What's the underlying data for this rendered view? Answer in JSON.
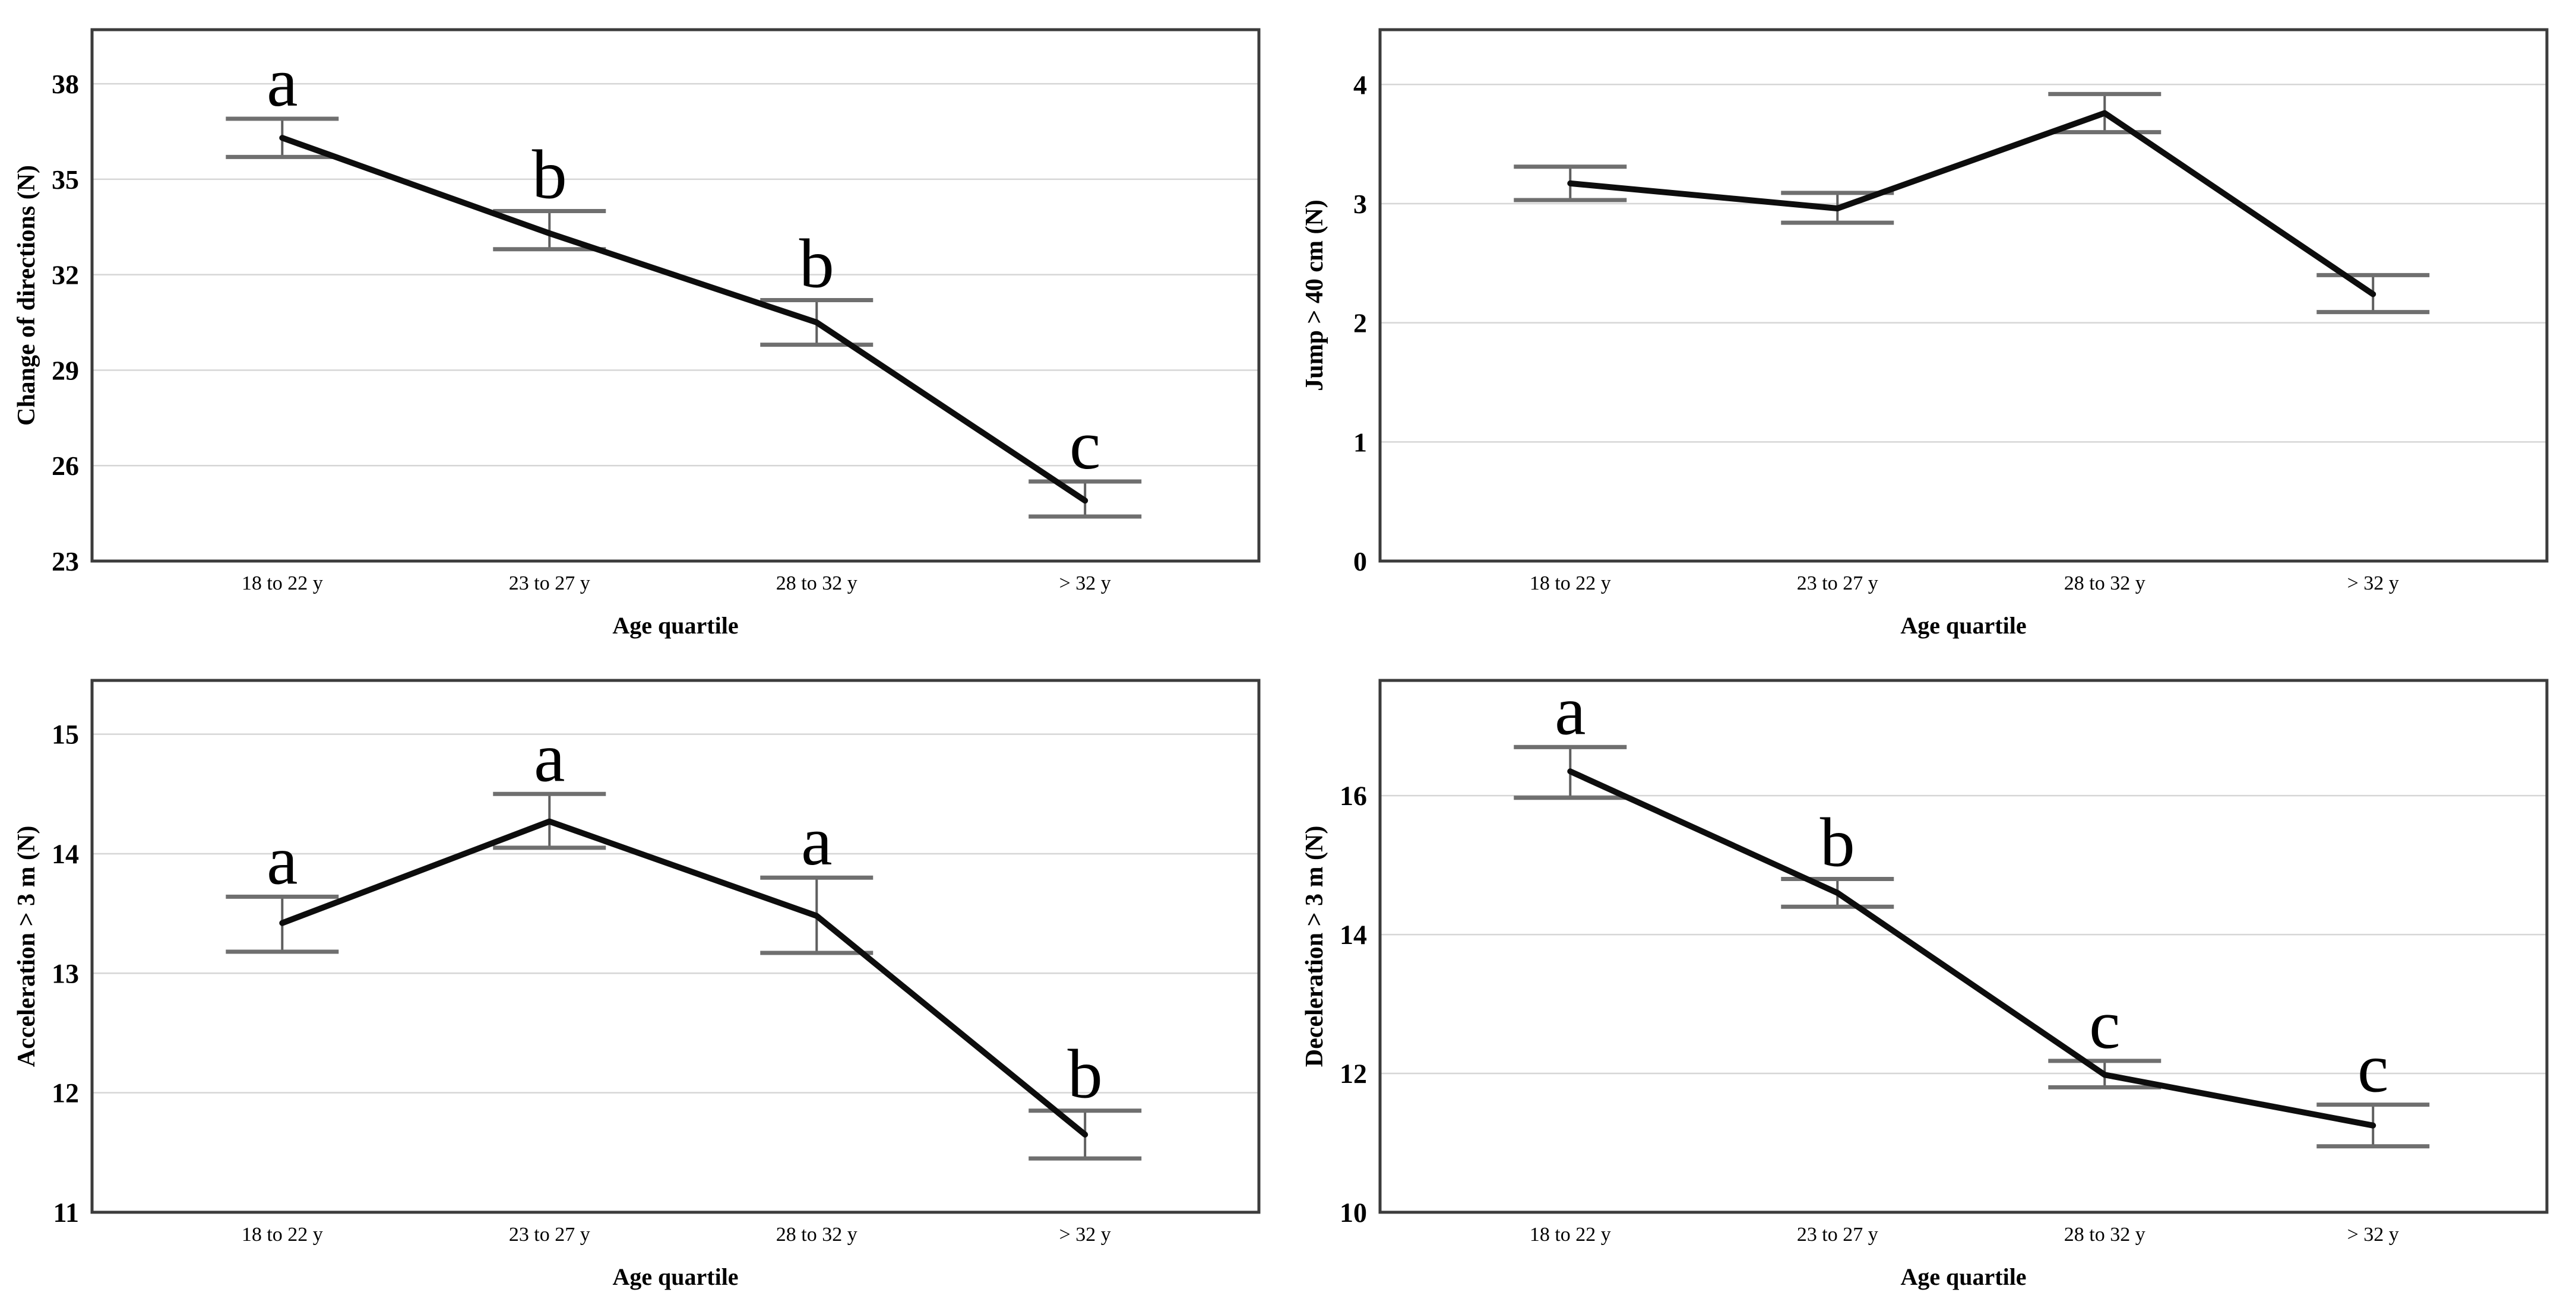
{
  "figure": {
    "layout": "2x2-grid-of-line-charts",
    "background": "#ffffff"
  },
  "colors": {
    "data_line": "#0d0d0d",
    "error_cap": "#6f6f6f",
    "error_stem": "#5f5f5f",
    "gridline": "#d6d6d6",
    "plot_border": "#3c3c3c",
    "text": "#000000"
  },
  "chart_data": [
    {
      "id": "change-of-directions",
      "type": "line",
      "position": "top-left",
      "ylabel": "Change of directions (N)",
      "xlabel": "Age quartile",
      "categories": [
        "18 to 22 y",
        "23 to 27 y",
        "28 to 32 y",
        "> 32 y"
      ],
      "values": [
        36.3,
        33.3,
        30.5,
        24.9
      ],
      "ci_low": [
        35.7,
        32.8,
        29.8,
        24.4
      ],
      "ci_high": [
        36.9,
        34.0,
        31.2,
        25.5
      ],
      "sig_letters": [
        "a",
        "b",
        "b",
        "c"
      ],
      "yticks": [
        23,
        26,
        29,
        32,
        35,
        38
      ],
      "ylim": [
        23,
        39.7
      ],
      "grid": true,
      "legend": "none"
    },
    {
      "id": "jump-over-40cm",
      "type": "line",
      "position": "top-right",
      "ylabel": "Jump > 40 cm (N)",
      "xlabel": "Age quartile",
      "categories": [
        "18 to 22 y",
        "23 to 27 y",
        "28 to 32 y",
        "> 32 y"
      ],
      "values": [
        3.17,
        2.96,
        3.76,
        2.24
      ],
      "ci_low": [
        3.03,
        2.84,
        3.6,
        2.09
      ],
      "ci_high": [
        3.31,
        3.09,
        3.92,
        2.4
      ],
      "sig_letters": [
        "",
        "",
        "",
        ""
      ],
      "yticks": [
        0,
        1,
        2,
        3,
        4
      ],
      "ylim": [
        0,
        4.46
      ],
      "grid": true,
      "legend": "none"
    },
    {
      "id": "acceleration-over-3m",
      "type": "line",
      "position": "bottom-left",
      "ylabel": "Acceleration > 3 m (N)",
      "xlabel": "Age quartile",
      "categories": [
        "18 to 22 y",
        "23 to 27 y",
        "28 to 32 y",
        "> 32 y"
      ],
      "values": [
        13.42,
        14.27,
        13.48,
        11.65
      ],
      "ci_low": [
        13.18,
        14.05,
        13.17,
        11.45
      ],
      "ci_high": [
        13.64,
        14.5,
        13.8,
        11.85
      ],
      "sig_letters": [
        "a",
        "a",
        "a",
        "b"
      ],
      "yticks": [
        11,
        12,
        13,
        14,
        15
      ],
      "ylim": [
        11,
        15.45
      ],
      "grid": true,
      "legend": "none"
    },
    {
      "id": "deceleration-over-3m",
      "type": "line",
      "position": "bottom-right",
      "ylabel": "Deceleration > 3 m (N)",
      "xlabel": "Age quartile",
      "categories": [
        "18 to 22 y",
        "23 to 27 y",
        "28 to 32 y",
        "> 32 y"
      ],
      "values": [
        16.35,
        14.6,
        11.98,
        11.25
      ],
      "ci_low": [
        15.97,
        14.4,
        11.8,
        10.95
      ],
      "ci_high": [
        16.7,
        14.8,
        12.18,
        11.55
      ],
      "sig_letters": [
        "a",
        "b",
        "c",
        "c"
      ],
      "yticks": [
        10,
        12,
        14,
        16
      ],
      "ylim": [
        10,
        17.66
      ],
      "grid": true,
      "legend": "none"
    }
  ]
}
